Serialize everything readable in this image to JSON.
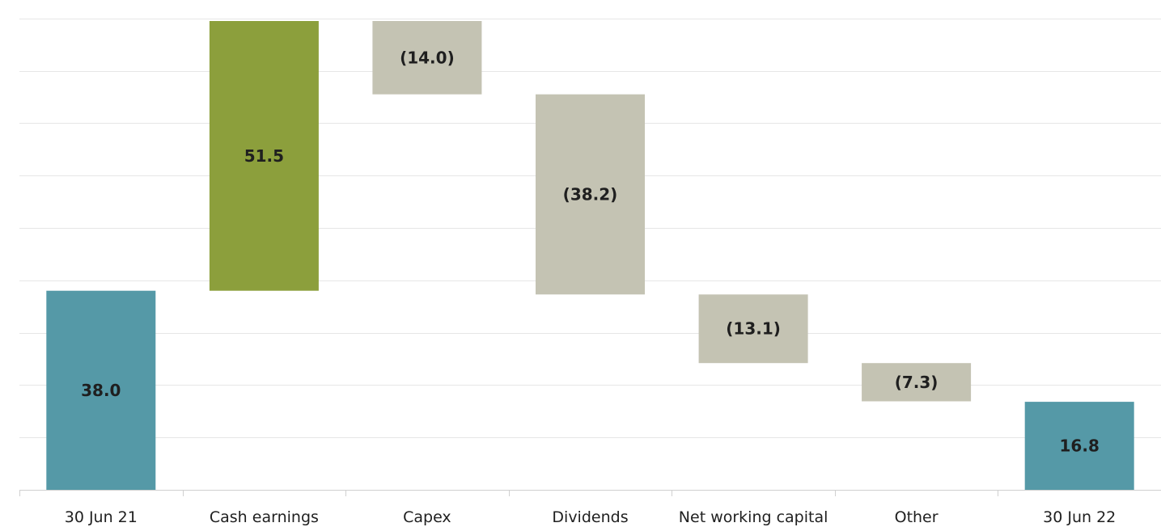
{
  "chart_data": {
    "type": "bar",
    "subtype": "waterfall",
    "categories": [
      "30 Jun 21",
      "Cash earnings",
      "Capex",
      "Dividends",
      "Net working capital",
      "Other",
      "30 Jun 22"
    ],
    "values": [
      38.0,
      51.5,
      -14.0,
      -38.2,
      -13.1,
      -7.3,
      16.8
    ],
    "value_labels": [
      "38.0",
      "51.5",
      "(14.0)",
      "(38.2)",
      "(13.1)",
      "(7.3)",
      "16.8"
    ],
    "kinds": [
      "total",
      "increase",
      "decrease",
      "decrease",
      "decrease",
      "decrease",
      "total"
    ],
    "ylim": [
      0,
      90
    ],
    "grid": true,
    "colors": {
      "total": "#5599a7",
      "increase": "#8c9f3c",
      "decrease": "#c4c3b3",
      "grid": "#e6e6e6",
      "axis": "#d0d0d0",
      "text": "#1f1f1f"
    }
  }
}
